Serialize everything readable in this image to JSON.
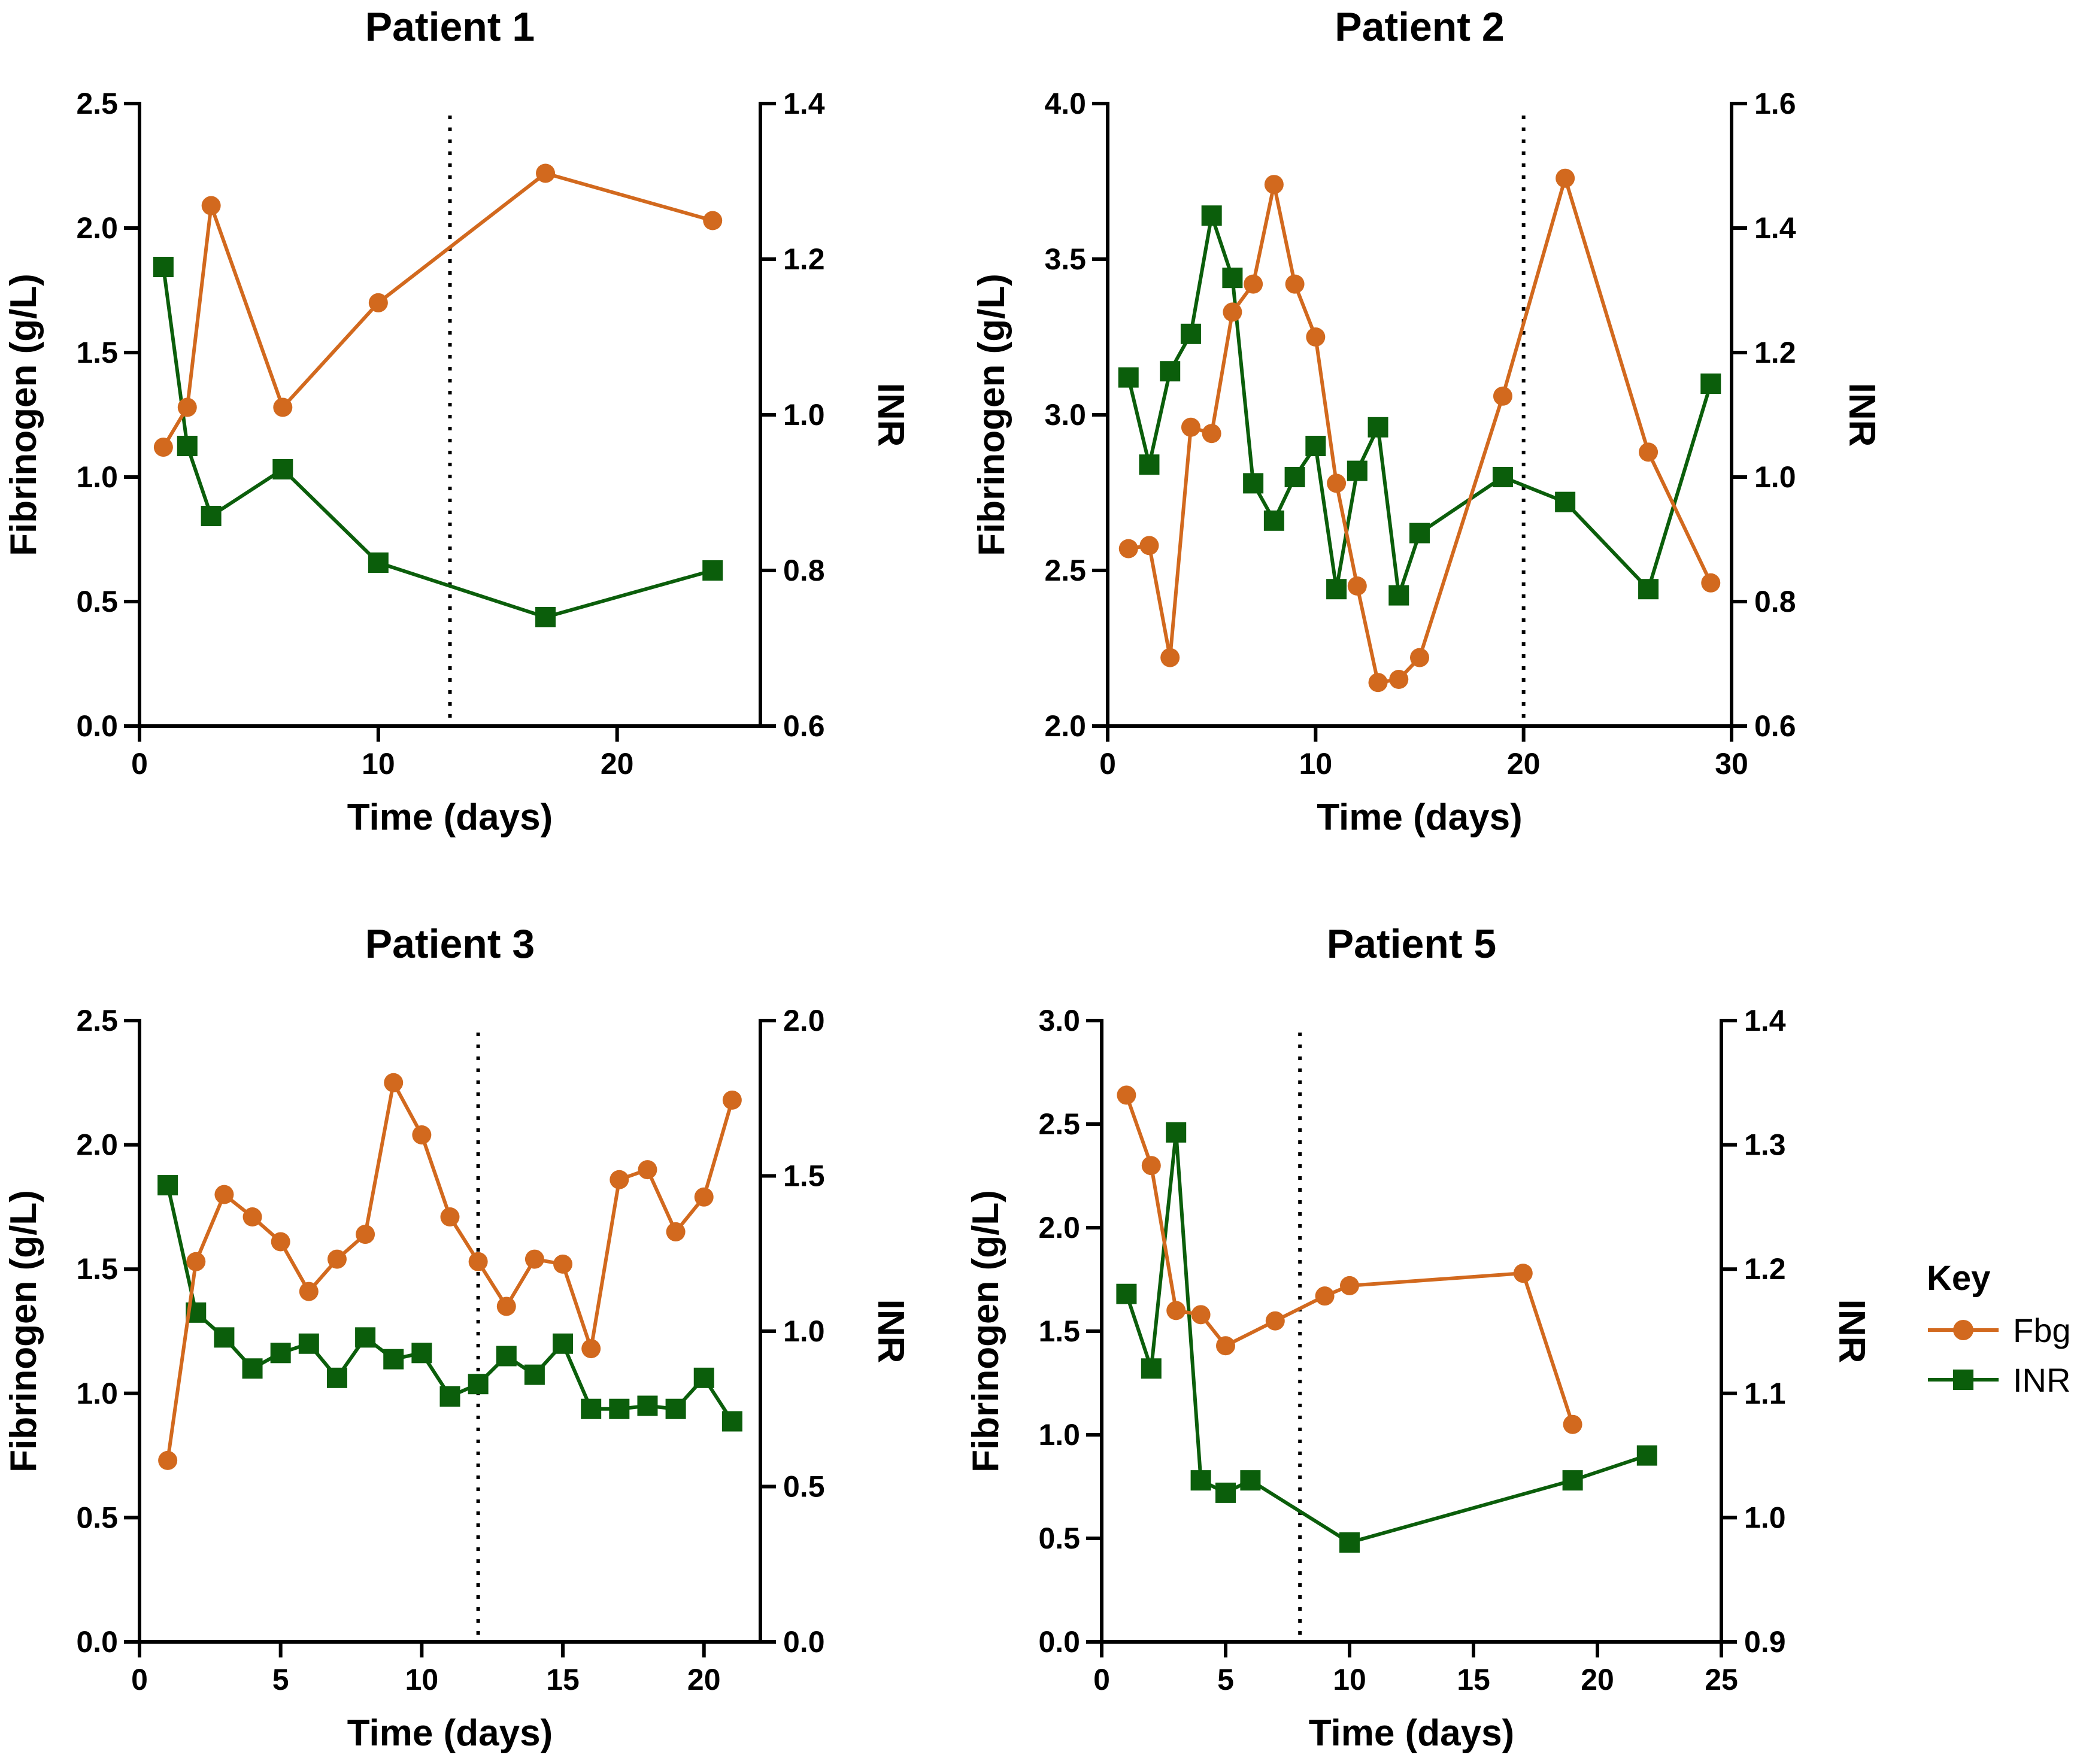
{
  "colors": {
    "fbg": "#D2691E",
    "inr": "#0B5E0B",
    "axis": "#000000"
  },
  "legend": {
    "title": "Key",
    "items": [
      {
        "label": "Fbg",
        "series": "fbg"
      },
      {
        "label": "INR",
        "series": "inr"
      }
    ]
  },
  "chart_data": [
    {
      "type": "line",
      "title": "Patient 1",
      "xlabel": "Time (days)",
      "ylabel": "Fibrinogen (g/L)",
      "y2label": "INR",
      "xlim": [
        0,
        26
      ],
      "xticks": [
        0,
        10,
        20
      ],
      "ylim": [
        0,
        2.5
      ],
      "yticks": [
        "0.0",
        "0.5",
        "1.0",
        "1.5",
        "2.0",
        "2.5"
      ],
      "y2lim": [
        0.6,
        1.4
      ],
      "y2ticks": [
        "0.6",
        "0.8",
        "1.0",
        "1.2",
        "1.4"
      ],
      "vline": 13,
      "series": [
        {
          "name": "Fbg",
          "axis": "left",
          "marker": "circle",
          "x": [
            1,
            2,
            3,
            6,
            10,
            17,
            24
          ],
          "y": [
            1.12,
            1.28,
            2.09,
            1.28,
            1.7,
            2.22,
            2.03
          ]
        },
        {
          "name": "INR",
          "axis": "right",
          "marker": "square",
          "x": [
            1,
            2,
            3,
            6,
            10,
            17,
            24
          ],
          "y": [
            1.19,
            0.96,
            0.87,
            0.93,
            0.81,
            0.74,
            0.8
          ]
        }
      ]
    },
    {
      "type": "line",
      "title": "Patient 2",
      "xlabel": "Time (days)",
      "ylabel": "Fibrinogen (g/L)",
      "y2label": "INR",
      "xlim": [
        0,
        30
      ],
      "xticks": [
        0,
        10,
        20,
        30
      ],
      "ylim": [
        2.0,
        4.0
      ],
      "yticks": [
        "2.0",
        "2.5",
        "3.0",
        "3.5",
        "4.0"
      ],
      "y2lim": [
        0.6,
        1.6
      ],
      "y2ticks": [
        "0.6",
        "0.8",
        "1.0",
        "1.2",
        "1.4",
        "1.6"
      ],
      "vline": 20,
      "series": [
        {
          "name": "Fbg",
          "axis": "left",
          "marker": "circle",
          "x": [
            1,
            2,
            3,
            4,
            5,
            6,
            7,
            8,
            9,
            10,
            11,
            12,
            13,
            14,
            15,
            19,
            22,
            26,
            29
          ],
          "y": [
            2.57,
            2.58,
            2.22,
            2.96,
            2.94,
            3.33,
            3.42,
            3.74,
            3.42,
            3.25,
            2.78,
            2.45,
            2.14,
            2.15,
            2.22,
            3.06,
            3.76,
            2.88,
            2.46
          ]
        },
        {
          "name": "INR",
          "axis": "right",
          "marker": "square",
          "x": [
            1,
            2,
            3,
            4,
            5,
            6,
            7,
            8,
            9,
            10,
            11,
            12,
            13,
            14,
            15,
            19,
            22,
            26,
            29
          ],
          "y": [
            1.16,
            1.02,
            1.17,
            1.23,
            1.42,
            1.32,
            0.99,
            0.93,
            1.0,
            1.05,
            0.82,
            1.01,
            1.08,
            0.81,
            0.91,
            1.0,
            0.96,
            0.82,
            1.15
          ]
        }
      ]
    },
    {
      "type": "line",
      "title": "Patient 3",
      "xlabel": "Time (days)",
      "ylabel": "Fibrinogen (g/L)",
      "y2label": "INR",
      "xlim": [
        0,
        22
      ],
      "xticks": [
        0,
        5,
        10,
        15,
        20
      ],
      "ylim": [
        0,
        2.5
      ],
      "yticks": [
        "0.0",
        "0.5",
        "1.0",
        "1.5",
        "2.0",
        "2.5"
      ],
      "y2lim": [
        0,
        2.0
      ],
      "y2ticks": [
        "0.0",
        "0.5",
        "1.0",
        "1.5",
        "2.0"
      ],
      "vline": 12,
      "series": [
        {
          "name": "Fbg",
          "axis": "left",
          "marker": "circle",
          "x": [
            1,
            2,
            3,
            4,
            5,
            6,
            7,
            8,
            9,
            10,
            11,
            12,
            13,
            14,
            15,
            16,
            17,
            18,
            19,
            20,
            21
          ],
          "y": [
            0.73,
            1.53,
            1.8,
            1.71,
            1.61,
            1.41,
            1.54,
            1.64,
            2.25,
            2.04,
            1.71,
            1.53,
            1.35,
            1.54,
            1.52,
            1.18,
            1.86,
            1.9,
            1.65,
            1.79,
            2.18
          ]
        },
        {
          "name": "INR",
          "axis": "right",
          "marker": "square",
          "x": [
            1,
            2,
            3,
            4,
            5,
            6,
            7,
            8,
            9,
            10,
            11,
            12,
            13,
            14,
            15,
            16,
            17,
            18,
            19,
            20,
            21
          ],
          "y": [
            1.47,
            1.06,
            0.98,
            0.88,
            0.93,
            0.96,
            0.85,
            0.98,
            0.91,
            0.93,
            0.79,
            0.83,
            0.92,
            0.86,
            0.96,
            0.75,
            0.75,
            0.76,
            0.75,
            0.85,
            0.71
          ]
        }
      ]
    },
    {
      "type": "line",
      "title": "Patient 5",
      "xlabel": "Time (days)",
      "ylabel": "Fibrinogen (g/L)",
      "y2label": "INR",
      "xlim": [
        0,
        25
      ],
      "xticks": [
        0,
        5,
        10,
        15,
        20,
        25
      ],
      "ylim": [
        0,
        3.0
      ],
      "yticks": [
        "0.0",
        "0.5",
        "1.0",
        "1.5",
        "2.0",
        "2.5",
        "3.0"
      ],
      "y2lim": [
        0.9,
        1.4
      ],
      "y2ticks": [
        "0.9",
        "1.0",
        "1.1",
        "1.2",
        "1.3",
        "1.4"
      ],
      "vline": 8,
      "series": [
        {
          "name": "Fbg",
          "axis": "left",
          "marker": "circle",
          "x": [
            1,
            2,
            3,
            4,
            5,
            7,
            9,
            10,
            17,
            19
          ],
          "y": [
            2.64,
            2.3,
            1.6,
            1.58,
            1.43,
            1.55,
            1.67,
            1.72,
            1.78,
            1.05
          ]
        },
        {
          "name": "INR",
          "axis": "right",
          "marker": "square",
          "x": [
            1,
            2,
            3,
            4,
            5,
            6,
            10,
            19,
            22
          ],
          "y": [
            1.18,
            1.12,
            1.31,
            1.03,
            1.02,
            1.03,
            0.98,
            1.03,
            1.05
          ]
        }
      ]
    }
  ]
}
